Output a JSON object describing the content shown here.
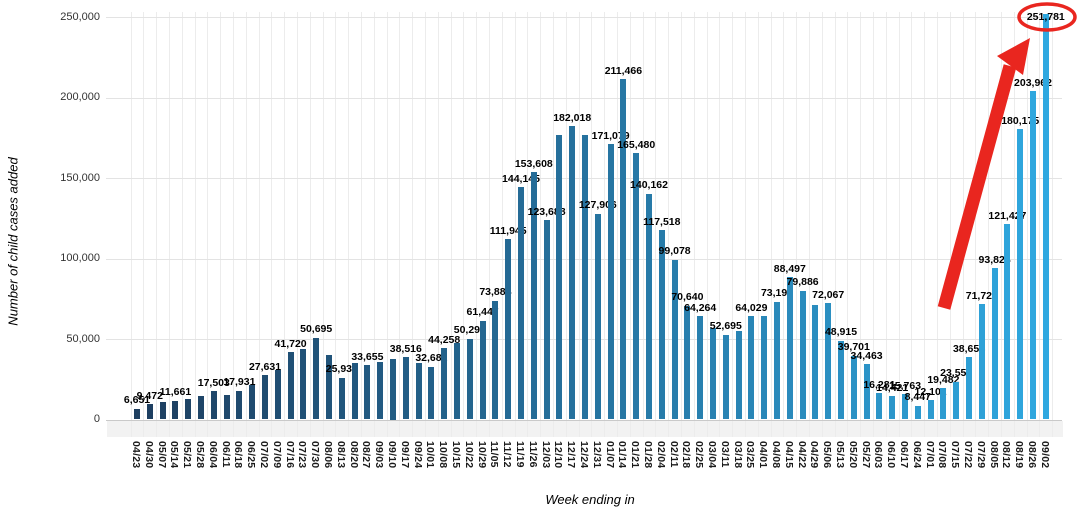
{
  "chart_data": {
    "type": "bar",
    "title": "",
    "xlabel": "Week ending in",
    "ylabel": "Number of child cases added",
    "ylim": [
      0,
      262000
    ],
    "grid": true,
    "legend": "none",
    "ytick_values": [
      0,
      50000,
      100000,
      150000,
      200000,
      250000
    ],
    "ytick_labels": [
      "0",
      "50,000",
      "100,000",
      "150,000",
      "200,000",
      "250,000"
    ],
    "categories": [
      "04/23",
      "04/30",
      "05/07",
      "05/14",
      "05/21",
      "05/28",
      "06/04",
      "06/11",
      "06/18",
      "06/25",
      "07/02",
      "07/09",
      "07/16",
      "07/23",
      "07/30",
      "08/06",
      "08/13",
      "08/20",
      "08/27",
      "09/03",
      "09/10",
      "09/17",
      "09/24",
      "10/01",
      "10/08",
      "10/15",
      "10/22",
      "10/29",
      "11/05",
      "11/12",
      "11/19",
      "11/26",
      "12/03",
      "12/10",
      "12/17",
      "12/24",
      "12/31",
      "01/07",
      "01/14",
      "01/21",
      "01/28",
      "02/04",
      "02/11",
      "02/18",
      "02/25",
      "03/04",
      "03/11",
      "03/18",
      "03/25",
      "04/01",
      "04/08",
      "04/15",
      "04/22",
      "04/29",
      "05/06",
      "05/13",
      "05/20",
      "05/27",
      "06/03",
      "06/10",
      "06/17",
      "06/24",
      "07/01",
      "07/08",
      "07/15",
      "07/22",
      "07/29",
      "08/05",
      "08/12",
      "08/19",
      "08/26",
      "09/02"
    ],
    "values": [
      6651,
      9472,
      11000,
      11661,
      12900,
      14300,
      17503,
      15000,
      17931,
      21600,
      27631,
      31000,
      41720,
      43500,
      50695,
      40000,
      25935,
      34800,
      33655,
      35500,
      37500,
      38516,
      35000,
      32682,
      44258,
      47500,
      50296,
      61447,
      73884,
      111945,
      144145,
      153608,
      123688,
      177000,
      182018,
      177000,
      127906,
      171079,
      211466,
      165480,
      140162,
      117518,
      99078,
      70640,
      64264,
      57000,
      52695,
      55000,
      64029,
      64000,
      73192,
      88497,
      79886,
      71000,
      72067,
      48915,
      39701,
      34463,
      16281,
      14421,
      15763,
      8447,
      12102,
      19482,
      23551,
      38654,
      71726,
      93824,
      121427,
      180175,
      203962,
      251781
    ],
    "bar_labels": [
      "6,651",
      "9,472",
      "",
      "11,661",
      "",
      "",
      "17,503",
      "",
      "17,931",
      "",
      "27,631",
      "",
      "41,720",
      "",
      "50,695",
      "",
      "25,935",
      "",
      "33,655",
      "",
      "",
      "38,516",
      "",
      "32,682",
      "44,258",
      "",
      "50,296",
      "61,447",
      "73,884",
      "111,945",
      "144,145",
      "153,608",
      "123,688",
      "",
      "182,018",
      "",
      "127,906",
      "171,079",
      "211,466",
      "165,480",
      "140,162",
      "117,518",
      "99,078",
      "70,640",
      "64,264",
      "",
      "52,695",
      "",
      "64,029",
      "",
      "73,192",
      "88,497",
      "79,886",
      "",
      "72,067",
      "48,915",
      "39,701",
      "34,463",
      "16,281",
      "14,421",
      "15,763",
      "8,447",
      "12,102",
      "19,482",
      "23,551",
      "38,654",
      "71,726",
      "93,824",
      "121,427",
      "180,175",
      "203,962",
      "251,781"
    ],
    "bar_color_start": "#1d3e5f",
    "bar_color_end": "#2fa8e0",
    "annotation": {
      "type": "arrow-and-circle",
      "color": "#e9261f",
      "circled_label": "251,781",
      "description": "thick red arrow pointing up-right to the circled final value"
    }
  }
}
